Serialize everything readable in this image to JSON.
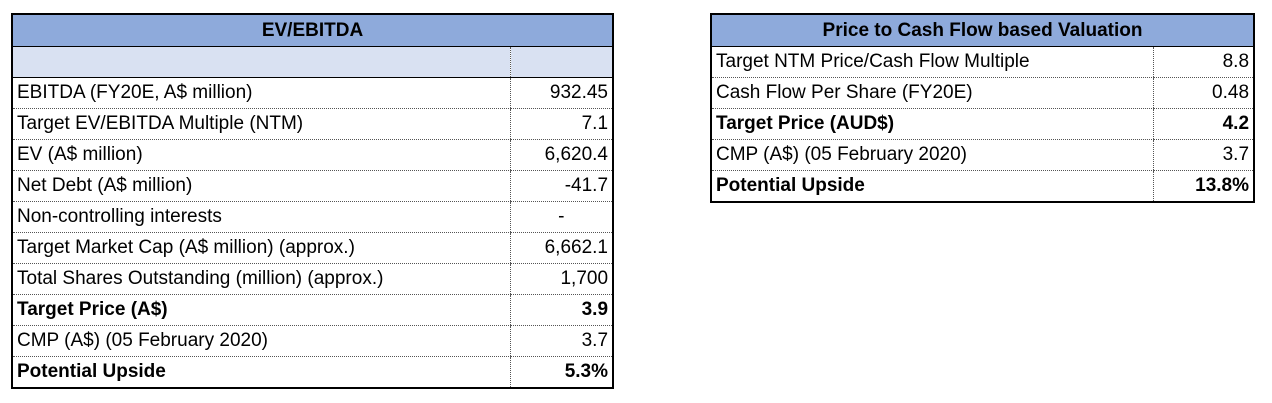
{
  "ev_ebitda": {
    "title": "EV/EBITDA",
    "rows": [
      {
        "label": "EBITDA (FY20E, A$ million)",
        "value": "932.45"
      },
      {
        "label": "Target EV/EBITDA Multiple (NTM)",
        "value": "7.1"
      },
      {
        "label": "EV (A$ million)",
        "value": "6,620.4"
      },
      {
        "label": "Net Debt (A$ million)",
        "value": "-41.7"
      },
      {
        "label": "Non-controlling interests",
        "value": "-"
      },
      {
        "label": "Target Market Cap (A$ million) (approx.)",
        "value": "6,662.1"
      },
      {
        "label": "Total Shares Outstanding (million) (approx.)",
        "value": "1,700"
      },
      {
        "label": "Target Price (A$)",
        "value": "3.9"
      },
      {
        "label": "CMP (A$) (05 February 2020)",
        "value": "3.7"
      },
      {
        "label": "Potential Upside",
        "value": "5.3%"
      }
    ]
  },
  "pcf": {
    "title": "Price to Cash Flow based Valuation",
    "rows": [
      {
        "label": "Target NTM Price/Cash Flow Multiple",
        "value": "8.8"
      },
      {
        "label": "Cash Flow Per Share (FY20E)",
        "value": "0.48"
      },
      {
        "label": "Target Price (AUD$)",
        "value": "4.2"
      },
      {
        "label": "CMP (A$) (05 February 2020)",
        "value": "3.7"
      },
      {
        "label": "Potential Upside",
        "value": "13.8%"
      }
    ]
  },
  "colors": {
    "header_fill": "#8eaadb",
    "blank_row_fill": "#d9e1f2"
  }
}
